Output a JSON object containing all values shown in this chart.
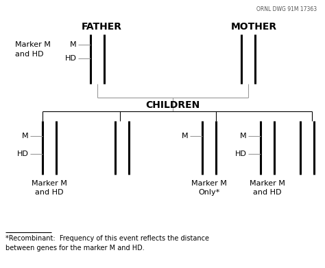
{
  "title_ornl": "ORNL DWG 91M 17363",
  "background_color": "#ffffff",
  "line_color": "#000000",
  "gray_line_color": "#999999",
  "father_label": "FATHER",
  "mother_label": "MOTHER",
  "children_label": "CHILDREN",
  "footnote_text": "*Recombinant:  Frequency of this event reflects the distance\nbetween genes for the marker M and HD."
}
